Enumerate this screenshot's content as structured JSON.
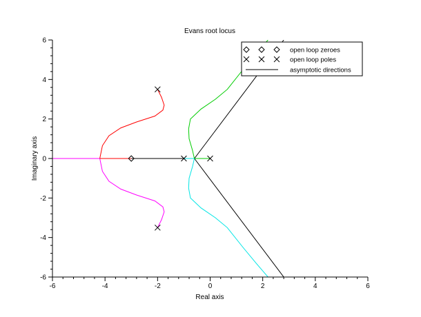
{
  "chart_data": {
    "type": "line",
    "title": "Evans root locus",
    "xlabel": "Real axis",
    "ylabel": "Imaginary axis",
    "xlim": [
      -6,
      6
    ],
    "ylim": [
      -6,
      6
    ],
    "xticks": [
      -6,
      -4,
      -2,
      0,
      2,
      4,
      6
    ],
    "yticks": [
      -6,
      -4,
      -2,
      0,
      2,
      4,
      6
    ],
    "tick_labels_x": [
      "-6",
      "-4",
      "-2",
      "0",
      "2",
      "4",
      "6"
    ],
    "tick_labels_y": [
      "-6",
      "-4",
      "-2",
      "0",
      "2",
      "4",
      "6"
    ],
    "grid": false,
    "legend": {
      "position": "top-right",
      "entries": [
        {
          "label": "open loop zeroes",
          "marker": "diamond"
        },
        {
          "label": "open loop poles",
          "marker": "x"
        },
        {
          "label": "asymptotic directions",
          "marker": "line"
        }
      ]
    },
    "zeros": [
      [
        -3,
        0
      ]
    ],
    "poles": [
      [
        -2,
        3.5
      ],
      [
        -2,
        -3.5
      ],
      [
        -1,
        0
      ],
      [
        0,
        0
      ]
    ],
    "asymptotes": {
      "color": "#000000",
      "lines": [
        [
          [
            -0.6,
            0
          ],
          [
            2.8,
            6.0
          ]
        ],
        [
          [
            -0.6,
            0
          ],
          [
            2.8,
            -6.0
          ]
        ],
        [
          [
            -3,
            0
          ],
          [
            -0.6,
            0
          ]
        ]
      ]
    },
    "series": [
      {
        "color": "#ff0000",
        "points": [
          [
            -2,
            3.5
          ],
          [
            -1.85,
            3.1
          ],
          [
            -1.75,
            2.7
          ],
          [
            -1.8,
            2.45
          ],
          [
            -2.1,
            2.15
          ],
          [
            -2.8,
            1.85
          ],
          [
            -3.4,
            1.55
          ],
          [
            -3.85,
            1.15
          ],
          [
            -4.1,
            0.65
          ],
          [
            -4.2,
            0
          ]
        ]
      },
      {
        "color": "#ff00ff",
        "points": [
          [
            -4.2,
            0
          ],
          [
            -4.1,
            -0.65
          ],
          [
            -3.85,
            -1.15
          ],
          [
            -3.4,
            -1.55
          ],
          [
            -2.8,
            -1.85
          ],
          [
            -2.1,
            -2.15
          ],
          [
            -1.8,
            -2.45
          ],
          [
            -1.75,
            -2.7
          ],
          [
            -1.85,
            -3.1
          ],
          [
            -2,
            -3.5
          ]
        ]
      },
      {
        "color": "#ff00ff",
        "points": [
          [
            -6,
            0
          ],
          [
            -4.2,
            0
          ]
        ]
      },
      {
        "color": "#ff0000",
        "points": [
          [
            -4.2,
            0
          ],
          [
            -3,
            0
          ]
        ]
      },
      {
        "color": "#00cc00",
        "points": [
          [
            -0.6,
            0
          ],
          [
            -0.67,
            0.4
          ],
          [
            -0.8,
            1.0
          ],
          [
            -0.82,
            1.5
          ],
          [
            -0.75,
            2.0
          ],
          [
            -0.35,
            2.5
          ],
          [
            0.2,
            3.0
          ],
          [
            0.65,
            3.5
          ],
          [
            1.25,
            4.5
          ],
          [
            1.75,
            5.3
          ],
          [
            2.2,
            6.0
          ]
        ]
      },
      {
        "color": "#00e5e5",
        "points": [
          [
            -0.6,
            0
          ],
          [
            -0.67,
            -0.4
          ],
          [
            -0.8,
            -1.0
          ],
          [
            -0.82,
            -1.5
          ],
          [
            -0.75,
            -2.0
          ],
          [
            -0.35,
            -2.5
          ],
          [
            0.2,
            -3.0
          ],
          [
            0.65,
            -3.5
          ],
          [
            1.25,
            -4.5
          ],
          [
            1.75,
            -5.3
          ],
          [
            2.2,
            -6.0
          ]
        ]
      },
      {
        "color": "#00e5e5",
        "points": [
          [
            -1,
            0
          ],
          [
            -0.6,
            0
          ]
        ]
      },
      {
        "color": "#00cc00",
        "points": [
          [
            -0.6,
            0
          ],
          [
            0,
            0
          ]
        ]
      }
    ]
  }
}
